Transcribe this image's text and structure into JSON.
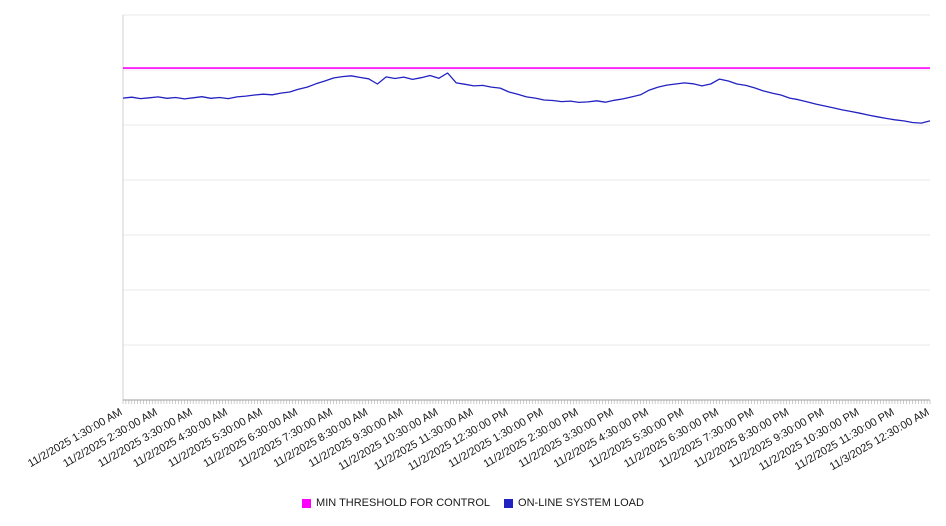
{
  "chart_data": {
    "type": "line",
    "title": "",
    "xlabel": "",
    "ylabel": "",
    "ylim": [
      0,
      140
    ],
    "y_gridline_step": 20,
    "grid": true,
    "legend_position": "bottom",
    "x_minor_tick_count": 276,
    "x_tick_labels": [
      "11/2/2025 1:30:00 AM",
      "11/2/2025 2:30:00 AM",
      "11/2/2025 3:30:00 AM",
      "11/2/2025 4:30:00 AM",
      "11/2/2025 5:30:00 AM",
      "11/2/2025 6:30:00 AM",
      "11/2/2025 7:30:00 AM",
      "11/2/2025 8:30:00 AM",
      "11/2/2025 9:30:00 AM",
      "11/2/2025 10:30:00 AM",
      "11/2/2025 11:30:00 AM",
      "11/2/2025 12:30:00 PM",
      "11/2/2025 1:30:00 PM",
      "11/2/2025 2:30:00 PM",
      "11/2/2025 3:30:00 PM",
      "11/2/2025 4:30:00 PM",
      "11/2/2025 5:30:00 PM",
      "11/2/2025 6:30:00 PM",
      "11/2/2025 7:30:00 PM",
      "11/2/2025 8:30:00 PM",
      "11/2/2025 9:30:00 PM",
      "11/2/2025 10:30:00 PM",
      "11/2/2025 11:30:00 PM",
      "11/3/2025 12:30:00 AM"
    ],
    "series": [
      {
        "name": "MIN THRESHOLD FOR CONTROL",
        "style": "threshold",
        "color": "#ff00ff",
        "value": 120.7
      },
      {
        "name": "ON-LINE SYSTEM LOAD",
        "style": "line",
        "color": "#2222c2",
        "values": [
          109.8,
          110.1,
          109.6,
          109.9,
          110.2,
          109.7,
          110.0,
          109.5,
          109.9,
          110.3,
          109.7,
          110.0,
          109.6,
          110.2,
          110.5,
          110.9,
          111.2,
          111.0,
          111.6,
          112.0,
          113.0,
          113.8,
          115.0,
          116.0,
          117.1,
          117.6,
          117.9,
          117.3,
          116.8,
          114.9,
          117.5,
          116.9,
          117.4,
          116.6,
          117.2,
          118.0,
          117.0,
          118.9,
          115.3,
          114.8,
          114.2,
          114.4,
          113.8,
          113.4,
          112.0,
          111.2,
          110.2,
          109.8,
          109.1,
          108.9,
          108.5,
          108.7,
          108.2,
          108.4,
          108.8,
          108.3,
          109.0,
          109.5,
          110.2,
          111.0,
          112.7,
          113.8,
          114.5,
          114.9,
          115.3,
          115.0,
          114.2,
          114.9,
          116.7,
          116.0,
          114.9,
          114.4,
          113.5,
          112.4,
          111.6,
          110.9,
          109.8,
          109.2,
          108.4,
          107.6,
          106.9,
          106.2,
          105.5,
          104.9,
          104.3,
          103.6,
          103.0,
          102.4,
          101.9,
          101.5,
          100.9,
          100.7,
          101.5
        ]
      }
    ]
  }
}
